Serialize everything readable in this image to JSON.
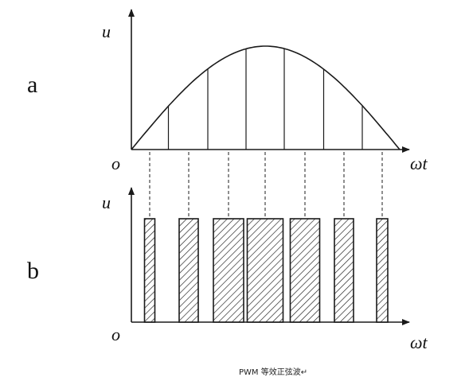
{
  "panel_a": {
    "label": "a",
    "y_axis": "u",
    "x_axis": "ωt",
    "origin": "o"
  },
  "panel_b": {
    "label": "b",
    "y_axis": "u",
    "x_axis": "ωt",
    "origin": "o"
  },
  "caption": "PWM 等效正弦波↵",
  "colors": {
    "ink": "#1a1a1a",
    "background": "#ffffff"
  }
}
